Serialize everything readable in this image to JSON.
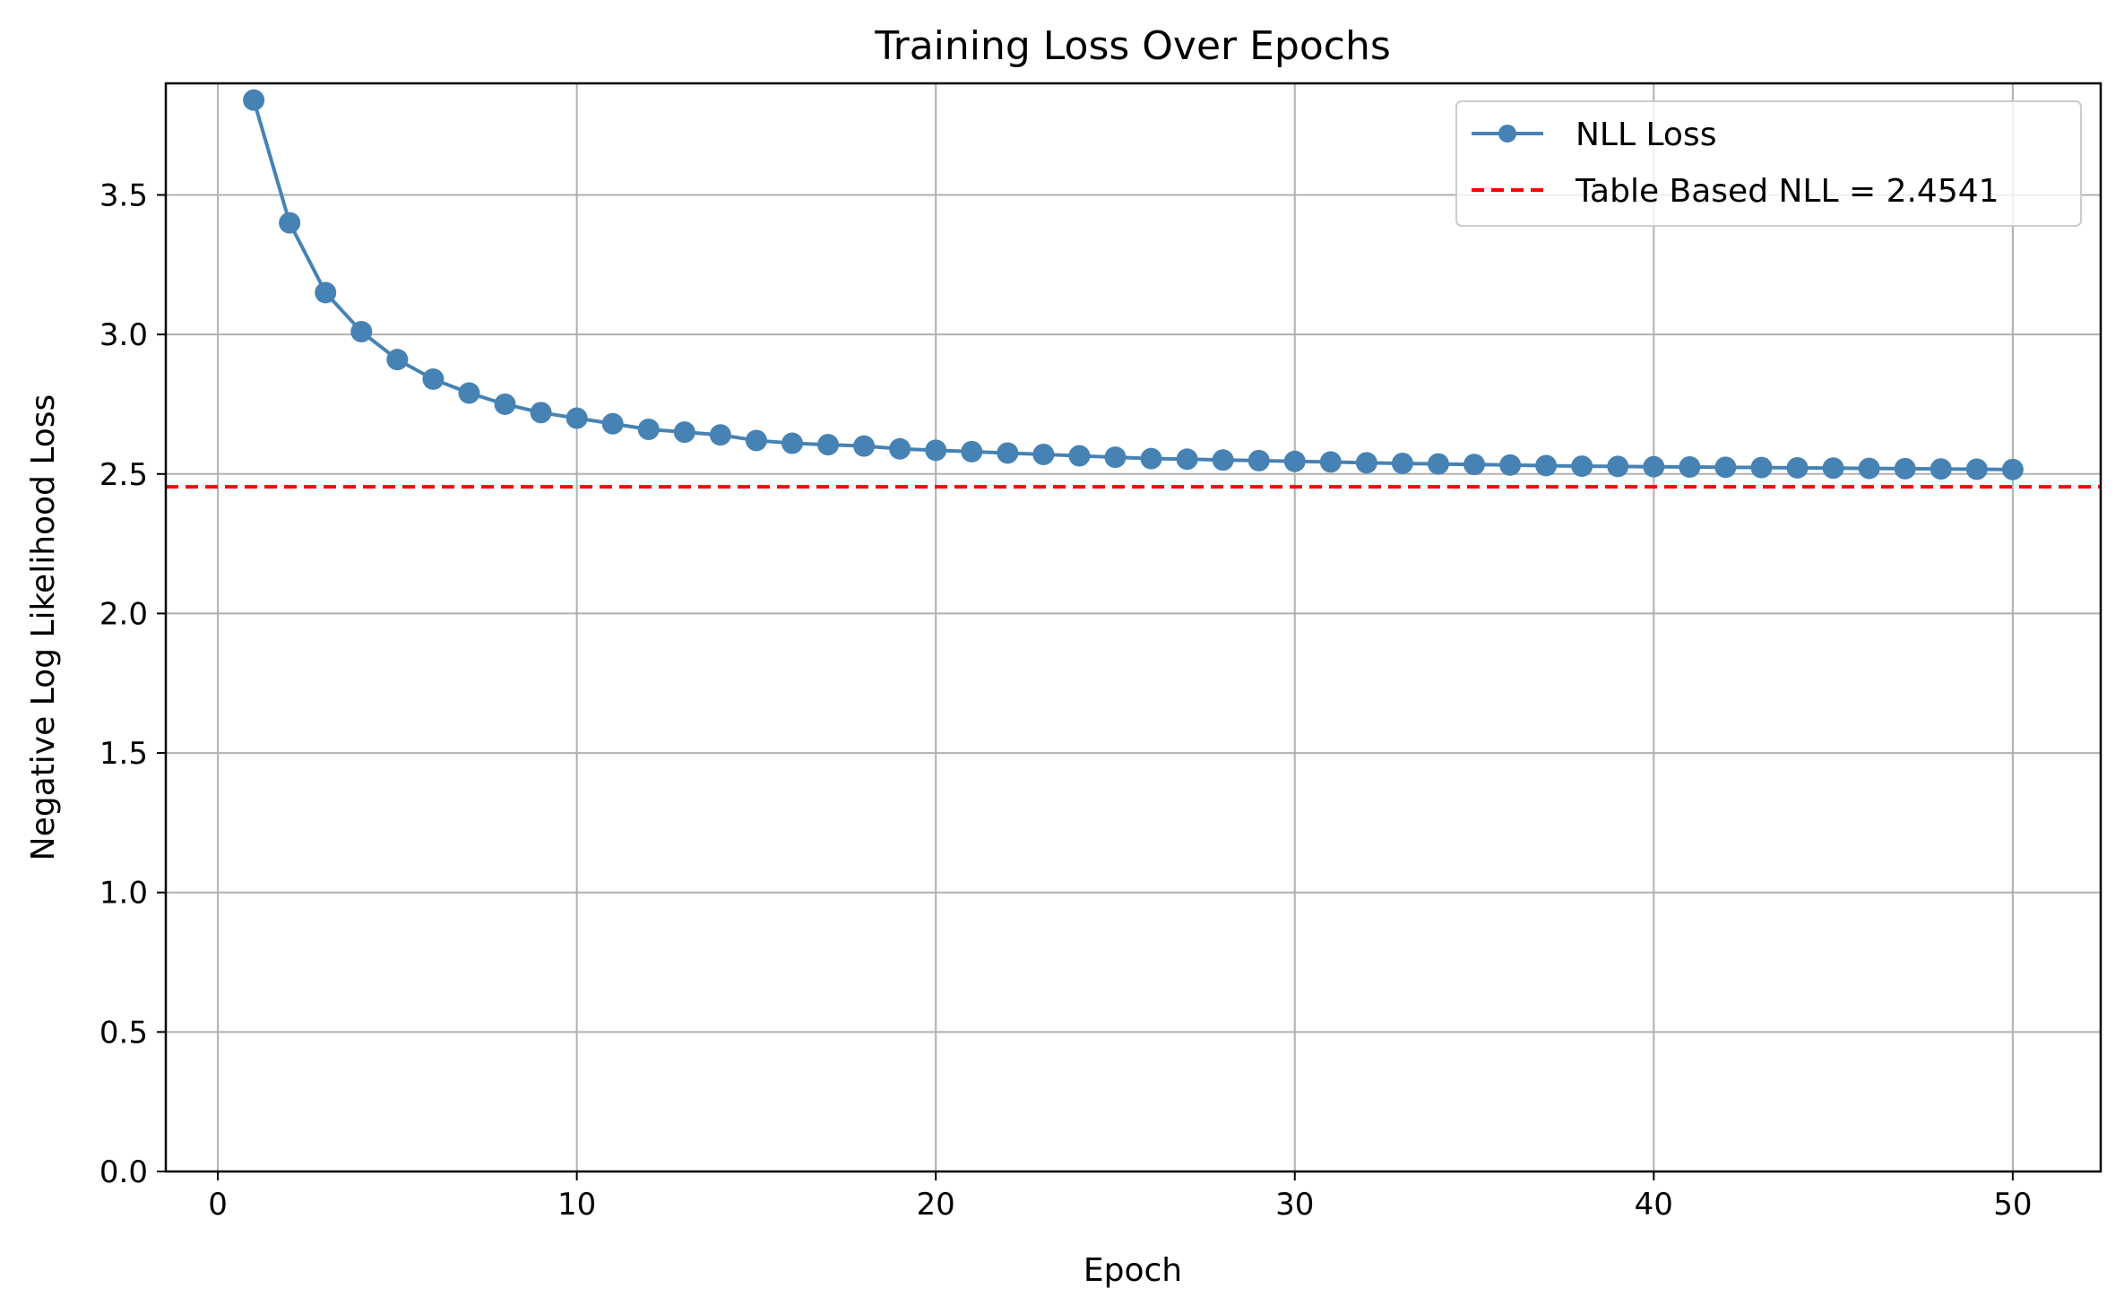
{
  "chart_data": {
    "type": "line",
    "title": "Training Loss Over Epochs",
    "xlabel": "Epoch",
    "ylabel": "Negative Log Likelihood Loss",
    "xlim": [
      -1.45,
      52.45
    ],
    "ylim": [
      0,
      3.9
    ],
    "xticks": [
      0,
      10,
      20,
      30,
      40,
      50
    ],
    "yticks": [
      0.0,
      0.5,
      1.0,
      1.5,
      2.0,
      2.5,
      3.0,
      3.5
    ],
    "xtick_labels": [
      "0",
      "10",
      "20",
      "30",
      "40",
      "50"
    ],
    "ytick_labels": [
      "0.0",
      "0.5",
      "1.0",
      "1.5",
      "2.0",
      "2.5",
      "3.0",
      "3.5"
    ],
    "grid": true,
    "legend_position": "upper right",
    "series": [
      {
        "name": "NLL Loss",
        "color": "#4682b4",
        "marker": "circle",
        "x": [
          1,
          2,
          3,
          4,
          5,
          6,
          7,
          8,
          9,
          10,
          11,
          12,
          13,
          14,
          15,
          16,
          17,
          18,
          19,
          20,
          21,
          22,
          23,
          24,
          25,
          26,
          27,
          28,
          29,
          30,
          31,
          32,
          33,
          34,
          35,
          36,
          37,
          38,
          39,
          40,
          41,
          42,
          43,
          44,
          45,
          46,
          47,
          48,
          49,
          50
        ],
        "values": [
          3.84,
          3.4,
          3.15,
          3.01,
          2.91,
          2.84,
          2.79,
          2.75,
          2.72,
          2.7,
          2.68,
          2.66,
          2.65,
          2.64,
          2.62,
          2.61,
          2.605,
          2.6,
          2.59,
          2.585,
          2.58,
          2.575,
          2.57,
          2.565,
          2.56,
          2.555,
          2.553,
          2.55,
          2.548,
          2.545,
          2.543,
          2.54,
          2.538,
          2.536,
          2.534,
          2.532,
          2.53,
          2.528,
          2.527,
          2.526,
          2.525,
          2.524,
          2.523,
          2.522,
          2.521,
          2.52,
          2.519,
          2.518,
          2.517,
          2.516
        ]
      }
    ],
    "reference_line": {
      "label": "Table Based NLL = 2.4541",
      "value": 2.4541,
      "color": "#ff0000",
      "style": "dashed"
    }
  }
}
